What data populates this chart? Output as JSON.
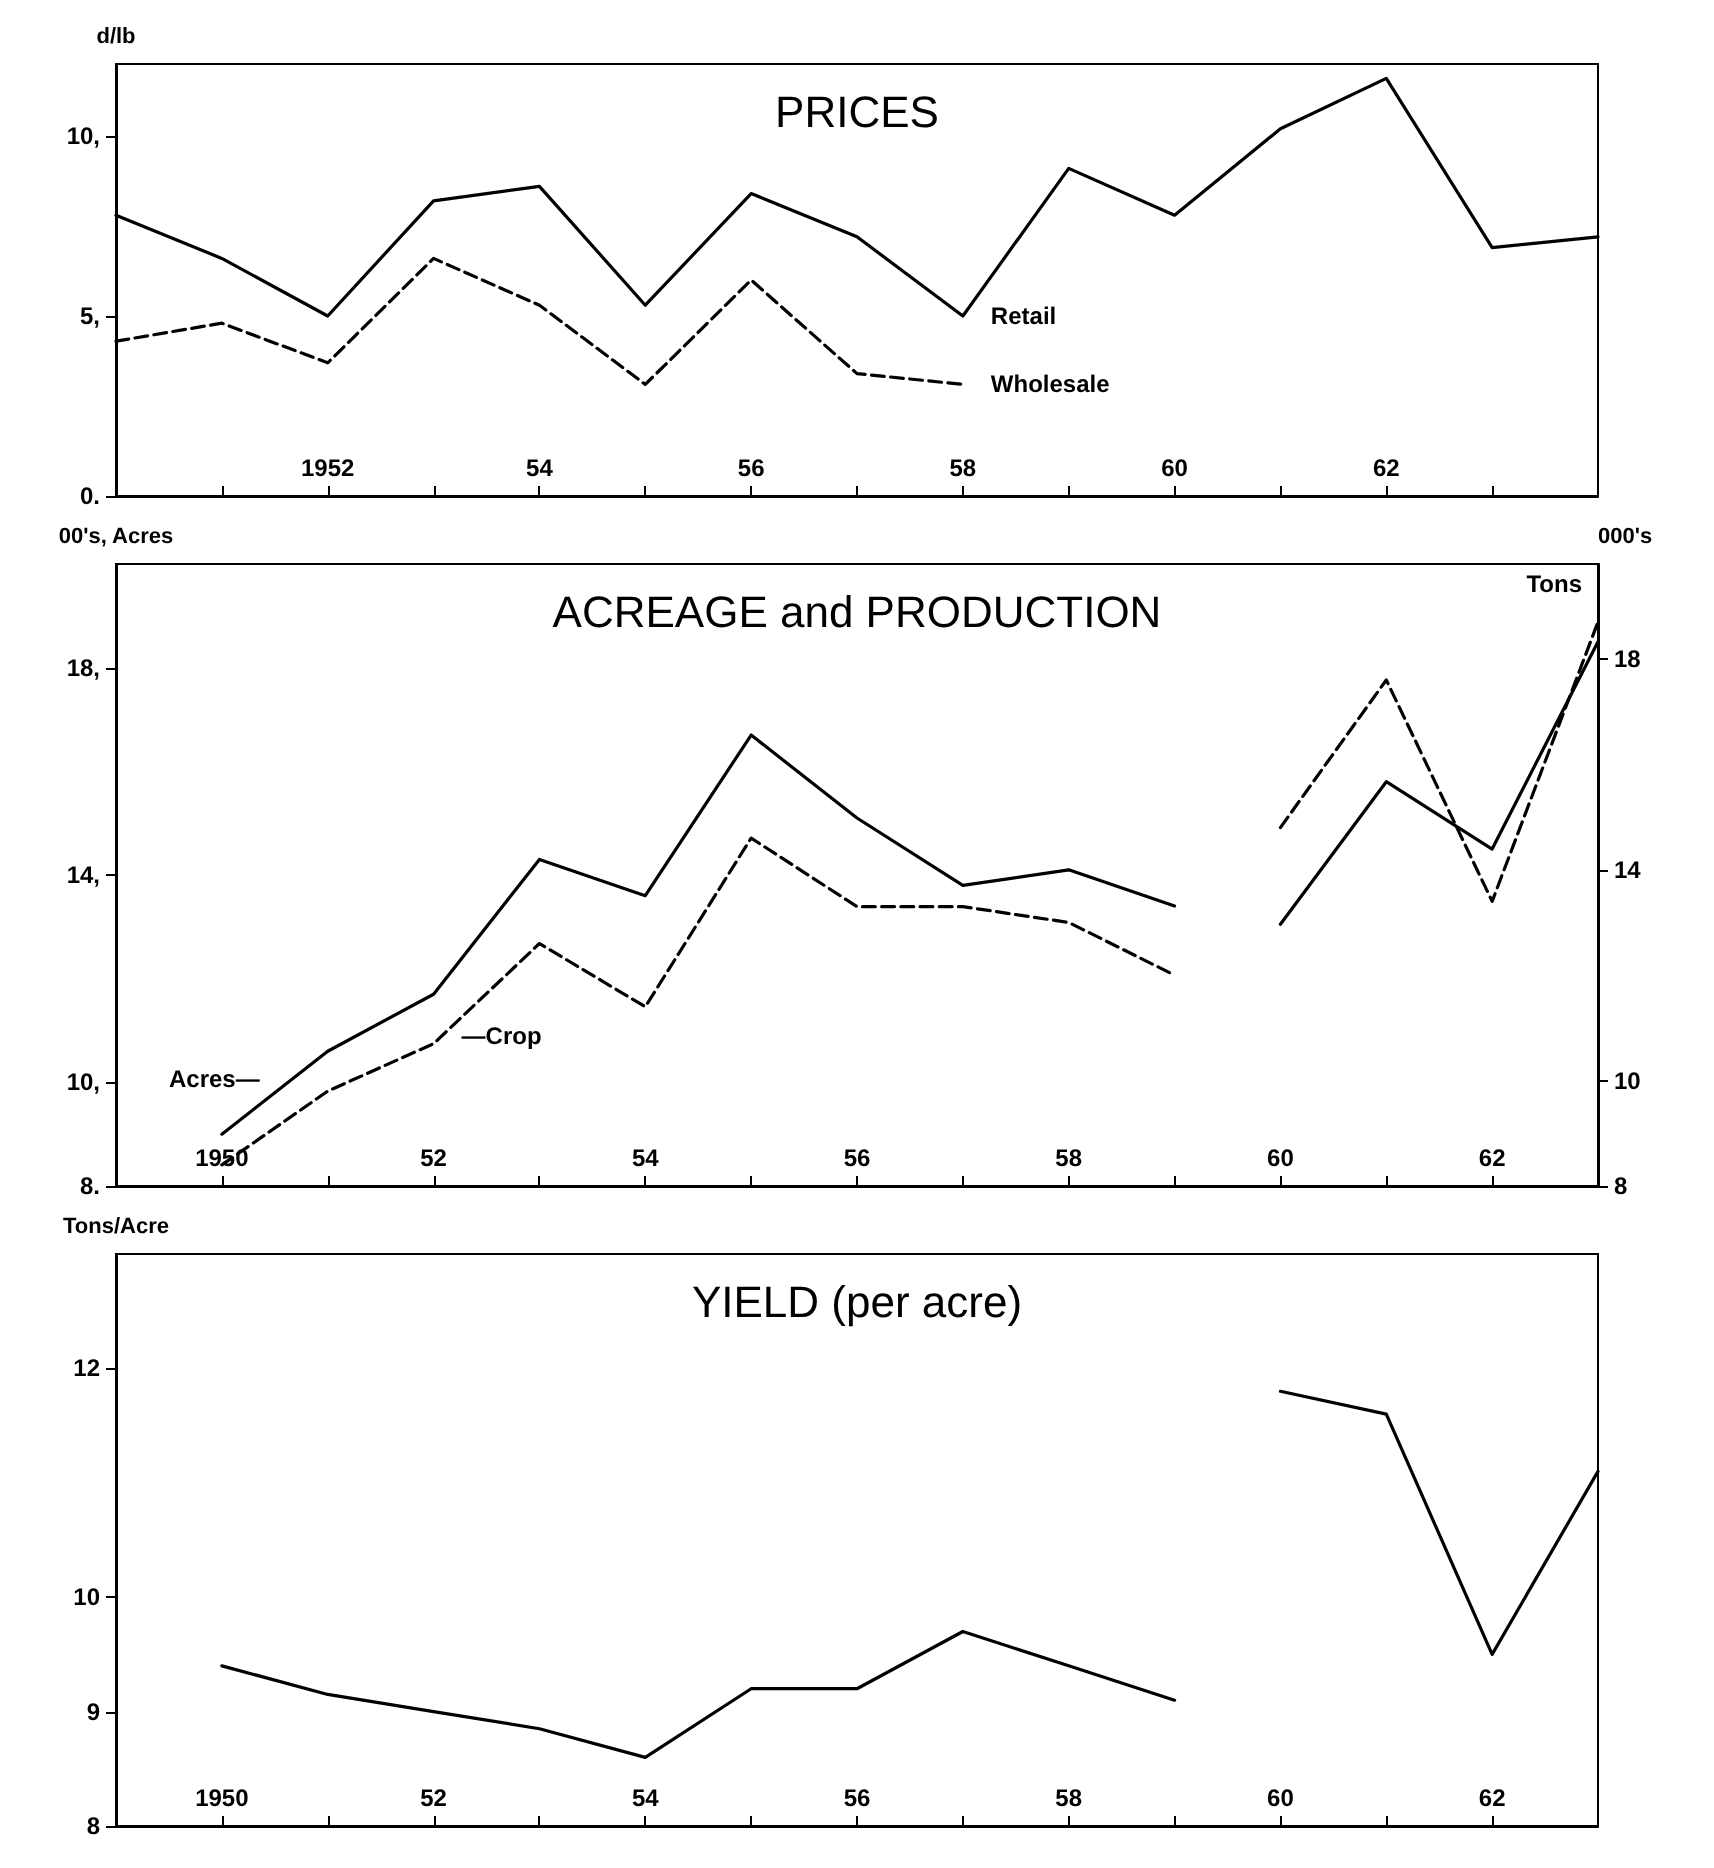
{
  "chart_data": [
    {
      "type": "line",
      "title": "PRICES",
      "ylabel": "d/lb",
      "grid": false,
      "legend": false,
      "marker": "none",
      "xlim": [
        1950,
        1964
      ],
      "xticks": [
        {
          "value": 1951,
          "label": null
        },
        {
          "value": 1952,
          "label": "1952"
        },
        {
          "value": 1953,
          "label": null
        },
        {
          "value": 1954,
          "label": "54"
        },
        {
          "value": 1955,
          "label": null
        },
        {
          "value": 1956,
          "label": "56"
        },
        {
          "value": 1957,
          "label": null
        },
        {
          "value": 1958,
          "label": "58"
        },
        {
          "value": 1959,
          "label": null
        },
        {
          "value": 1960,
          "label": "60"
        },
        {
          "value": 1961,
          "label": null
        },
        {
          "value": 1962,
          "label": "62"
        },
        {
          "value": 1963,
          "label": null
        }
      ],
      "ylim": [
        0,
        12
      ],
      "yticks": [
        {
          "value": 0,
          "label": "0."
        },
        {
          "value": 5,
          "label": "5,"
        },
        {
          "value": 10,
          "label": "10,"
        }
      ],
      "series": [
        {
          "name": "Retail",
          "color": "#000000",
          "line_style": "solid",
          "x": [
            1950,
            1951,
            1952,
            1953,
            1954,
            1955,
            1956,
            1957,
            1958,
            1959,
            1960,
            1961,
            1962,
            1963,
            1964
          ],
          "values": [
            7.8,
            6.6,
            5.0,
            8.2,
            8.6,
            5.3,
            8.4,
            7.2,
            5.0,
            9.1,
            7.8,
            10.2,
            11.6,
            6.9,
            7.2
          ]
        },
        {
          "name": "Wholesale",
          "color": "#000000",
          "line_style": "dashed",
          "x": [
            1950,
            1951,
            1952,
            1953,
            1954,
            1955,
            1956,
            1957,
            1958
          ],
          "values": [
            4.3,
            4.8,
            3.7,
            6.6,
            5.3,
            3.1,
            6.0,
            3.4,
            3.1
          ]
        }
      ]
    },
    {
      "type": "line",
      "title": "ACREAGE and PRODUCTION",
      "ylabel": "00's, Acres",
      "y2label": "000's",
      "annotations": [
        "Tons"
      ],
      "grid": false,
      "legend": false,
      "marker": "none",
      "xlim": [
        1949,
        1963
      ],
      "xticks": [
        {
          "value": 1950,
          "label": "1950"
        },
        {
          "value": 1951,
          "label": null
        },
        {
          "value": 1952,
          "label": "52"
        },
        {
          "value": 1953,
          "label": null
        },
        {
          "value": 1954,
          "label": "54"
        },
        {
          "value": 1955,
          "label": null
        },
        {
          "value": 1956,
          "label": "56"
        },
        {
          "value": 1957,
          "label": null
        },
        {
          "value": 1958,
          "label": "58"
        },
        {
          "value": 1959,
          "label": null
        },
        {
          "value": 1960,
          "label": "60"
        },
        {
          "value": 1961,
          "label": null
        },
        {
          "value": 1962,
          "label": "62"
        }
      ],
      "ylim": [
        8,
        20
      ],
      "yticks": [
        {
          "value": 8,
          "label": "8."
        },
        {
          "value": 10,
          "label": "10,"
        },
        {
          "value": 14,
          "label": "14,"
        },
        {
          "value": 18,
          "label": "18,"
        }
      ],
      "y2lim": [
        8,
        19.8
      ],
      "y2ticks": [
        8,
        10,
        14,
        18
      ],
      "series": [
        {
          "name": "Acres—",
          "color": "#000000",
          "line_style": "solid",
          "x": [
            1950,
            1951,
            1952,
            1953,
            1954,
            1955,
            1956,
            1957,
            1958,
            1959,
            1959.5,
            1960,
            1961,
            1962,
            1963
          ],
          "values": [
            9.0,
            10.6,
            11.7,
            14.3,
            13.6,
            16.7,
            15.1,
            13.8,
            14.1,
            13.4,
            null,
            13.05,
            15.8,
            14.5,
            18.5
          ]
        },
        {
          "name": "—Crop",
          "color": "#000000",
          "line_style": "dashed",
          "axis": "y2",
          "x": [
            1950,
            1951,
            1952,
            1953,
            1954,
            1955,
            1956,
            1957,
            1958,
            1959,
            1959.6,
            1960,
            1961,
            1962,
            1963
          ],
          "values": [
            8.4,
            9.8,
            10.7,
            12.6,
            11.4,
            14.6,
            13.3,
            13.3,
            13.0,
            12.0,
            null,
            14.8,
            17.6,
            13.4,
            18.7
          ]
        }
      ]
    },
    {
      "type": "line",
      "title": "YIELD (per acre)",
      "ylabel": "Tons/Acre",
      "grid": false,
      "legend": false,
      "marker": "none",
      "xlim": [
        1949,
        1963
      ],
      "xticks": [
        {
          "value": 1950,
          "label": "1950"
        },
        {
          "value": 1951,
          "label": null
        },
        {
          "value": 1952,
          "label": "52"
        },
        {
          "value": 1953,
          "label": null
        },
        {
          "value": 1954,
          "label": "54"
        },
        {
          "value": 1955,
          "label": null
        },
        {
          "value": 1956,
          "label": "56"
        },
        {
          "value": 1957,
          "label": null
        },
        {
          "value": 1958,
          "label": "58"
        },
        {
          "value": 1959,
          "label": null
        },
        {
          "value": 1960,
          "label": "60"
        },
        {
          "value": 1961,
          "label": null
        },
        {
          "value": 1962,
          "label": "62"
        }
      ],
      "ylim": [
        8,
        13
      ],
      "yticks": [
        8,
        9,
        10,
        12
      ],
      "series": [
        {
          "color": "#000000",
          "line_style": "solid",
          "x": [
            1950,
            1951,
            1952,
            1953,
            1954,
            1955,
            1956,
            1957,
            1958,
            1959,
            1959.5,
            1960,
            1961,
            1962,
            1963
          ],
          "values": [
            9.4,
            9.15,
            9.0,
            8.85,
            8.6,
            9.2,
            9.2,
            9.7,
            9.4,
            9.1,
            null,
            11.8,
            11.6,
            9.5,
            11.1
          ]
        }
      ]
    }
  ]
}
